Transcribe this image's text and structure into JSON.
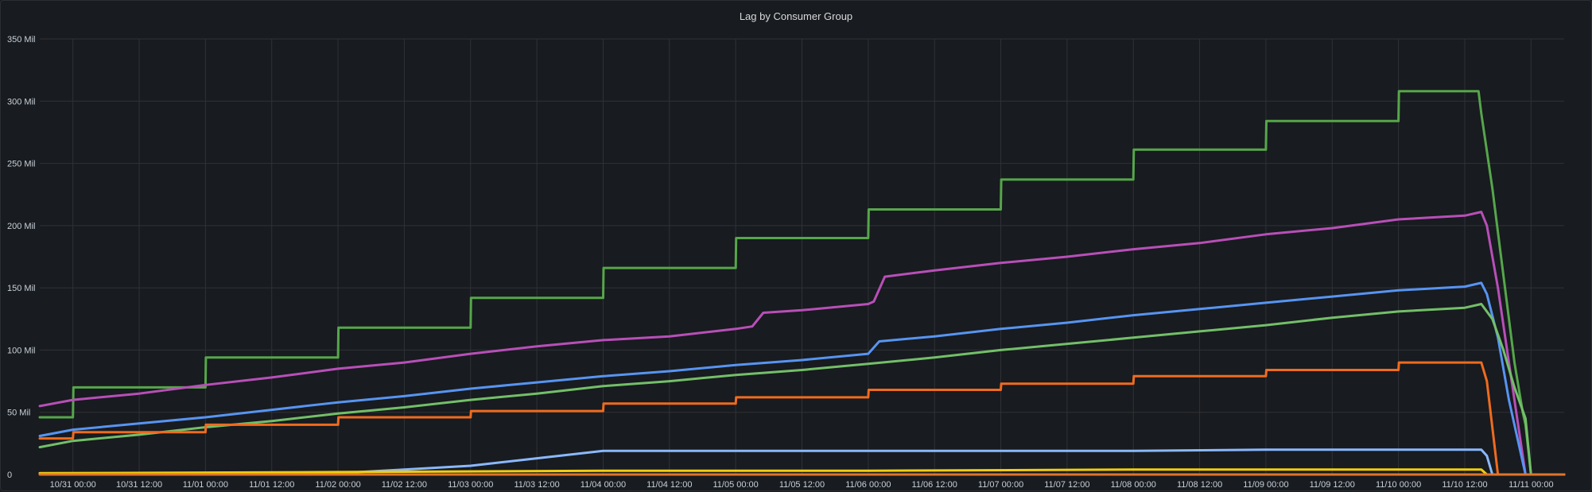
{
  "panel": {
    "title": "Lag by Consumer Group"
  },
  "chart_data": {
    "type": "line",
    "title": "Lag by Consumer Group",
    "xlabel": "",
    "ylabel": "",
    "xlim": [
      "10/30 18:00",
      "11/11 06:00"
    ],
    "ylim": [
      0,
      350
    ],
    "grid": true,
    "legend": "none",
    "y_ticks": [
      {
        "value": 0,
        "label": "0"
      },
      {
        "value": 50,
        "label": "50 Mil"
      },
      {
        "value": 100,
        "label": "100 Mil"
      },
      {
        "value": 150,
        "label": "150 Mil"
      },
      {
        "value": 200,
        "label": "200 Mil"
      },
      {
        "value": 250,
        "label": "250 Mil"
      },
      {
        "value": 300,
        "label": "300 Mil"
      },
      {
        "value": 350,
        "label": "350 Mil"
      }
    ],
    "x_ticks": [
      {
        "time": "10/31 00:00",
        "label": "10/31 00:00"
      },
      {
        "time": "10/31 12:00",
        "label": "10/31 12:00"
      },
      {
        "time": "11/01 00:00",
        "label": "11/01 00:00"
      },
      {
        "time": "11/01 12:00",
        "label": "11/01 12:00"
      },
      {
        "time": "11/02 00:00",
        "label": "11/02 00:00"
      },
      {
        "time": "11/02 12:00",
        "label": "11/02 12:00"
      },
      {
        "time": "11/03 00:00",
        "label": "11/03 00:00"
      },
      {
        "time": "11/03 12:00",
        "label": "11/03 12:00"
      },
      {
        "time": "11/04 00:00",
        "label": "11/04 00:00"
      },
      {
        "time": "11/04 12:00",
        "label": "11/04 12:00"
      },
      {
        "time": "11/05 00:00",
        "label": "11/05 00:00"
      },
      {
        "time": "11/05 12:00",
        "label": "11/05 12:00"
      },
      {
        "time": "11/06 00:00",
        "label": "11/06 00:00"
      },
      {
        "time": "11/06 12:00",
        "label": "11/06 12:00"
      },
      {
        "time": "11/07 00:00",
        "label": "11/07 00:00"
      },
      {
        "time": "11/07 12:00",
        "label": "11/07 12:00"
      },
      {
        "time": "11/08 00:00",
        "label": "11/08 00:00"
      },
      {
        "time": "11/08 12:00",
        "label": "11/08 12:00"
      },
      {
        "time": "11/09 00:00",
        "label": "11/09 00:00"
      },
      {
        "time": "11/09 12:00",
        "label": "11/09 12:00"
      },
      {
        "time": "11/10 00:00",
        "label": "11/10 00:00"
      },
      {
        "time": "11/10 12:00",
        "label": "11/10 12:00"
      },
      {
        "time": "11/11 00:00",
        "label": "11/11 00:00"
      }
    ],
    "series": [
      {
        "color": "#56a64b",
        "points": [
          [
            "10/30 18:00",
            46
          ],
          [
            "10/31 00:00",
            46
          ],
          [
            "10/31 00:05",
            70
          ],
          [
            "11/01 00:00",
            70
          ],
          [
            "11/01 00:05",
            94
          ],
          [
            "11/02 00:00",
            94
          ],
          [
            "11/02 00:05",
            118
          ],
          [
            "11/03 00:00",
            118
          ],
          [
            "11/03 00:05",
            142
          ],
          [
            "11/04 00:00",
            142
          ],
          [
            "11/04 00:05",
            166
          ],
          [
            "11/05 00:00",
            166
          ],
          [
            "11/05 00:05",
            190
          ],
          [
            "11/06 00:00",
            190
          ],
          [
            "11/06 00:05",
            213
          ],
          [
            "11/07 00:00",
            213
          ],
          [
            "11/07 00:05",
            237
          ],
          [
            "11/08 00:00",
            237
          ],
          [
            "11/08 00:05",
            261
          ],
          [
            "11/09 00:00",
            261
          ],
          [
            "11/09 00:05",
            284
          ],
          [
            "11/10 00:00",
            284
          ],
          [
            "11/10 00:05",
            308
          ],
          [
            "11/10 14:30",
            308
          ],
          [
            "11/10 15:00",
            290
          ],
          [
            "11/10 17:00",
            230
          ],
          [
            "11/10 19:00",
            160
          ],
          [
            "11/10 21:00",
            90
          ],
          [
            "11/10 22:30",
            50
          ],
          [
            "11/10 23:00",
            40
          ],
          [
            "11/11 00:00",
            0
          ],
          [
            "11/11 06:00",
            0
          ]
        ]
      },
      {
        "color": "#b84fb8",
        "points": [
          [
            "10/30 18:00",
            55
          ],
          [
            "10/31 00:00",
            60
          ],
          [
            "10/31 12:00",
            65
          ],
          [
            "11/01 00:00",
            72
          ],
          [
            "11/01 12:00",
            78
          ],
          [
            "11/02 00:00",
            85
          ],
          [
            "11/02 12:00",
            90
          ],
          [
            "11/03 00:00",
            97
          ],
          [
            "11/03 12:00",
            103
          ],
          [
            "11/04 00:00",
            108
          ],
          [
            "11/04 12:00",
            111
          ],
          [
            "11/05 00:00",
            117
          ],
          [
            "11/05 03:00",
            119
          ],
          [
            "11/05 05:00",
            130
          ],
          [
            "11/05 12:00",
            132
          ],
          [
            "11/06 00:00",
            137
          ],
          [
            "11/06 01:00",
            139
          ],
          [
            "11/06 03:00",
            159
          ],
          [
            "11/06 12:00",
            164
          ],
          [
            "11/07 00:00",
            170
          ],
          [
            "11/07 12:00",
            175
          ],
          [
            "11/08 00:00",
            181
          ],
          [
            "11/08 12:00",
            186
          ],
          [
            "11/09 00:00",
            193
          ],
          [
            "11/09 12:00",
            198
          ],
          [
            "11/10 00:00",
            205
          ],
          [
            "11/10 12:00",
            208
          ],
          [
            "11/10 15:00",
            211
          ],
          [
            "11/10 16:00",
            200
          ],
          [
            "11/10 18:00",
            150
          ],
          [
            "11/10 20:00",
            90
          ],
          [
            "11/10 22:00",
            30
          ],
          [
            "11/10 23:00",
            0
          ],
          [
            "11/11 06:00",
            0
          ]
        ]
      },
      {
        "color": "#5794f2",
        "points": [
          [
            "10/30 18:00",
            31
          ],
          [
            "10/31 00:00",
            36
          ],
          [
            "10/31 12:00",
            41
          ],
          [
            "11/01 00:00",
            46
          ],
          [
            "11/01 12:00",
            52
          ],
          [
            "11/02 00:00",
            58
          ],
          [
            "11/02 12:00",
            63
          ],
          [
            "11/03 00:00",
            69
          ],
          [
            "11/03 12:00",
            74
          ],
          [
            "11/04 00:00",
            79
          ],
          [
            "11/04 12:00",
            83
          ],
          [
            "11/05 00:00",
            88
          ],
          [
            "11/05 12:00",
            92
          ],
          [
            "11/06 00:00",
            97
          ],
          [
            "11/06 02:00",
            107
          ],
          [
            "11/06 12:00",
            111
          ],
          [
            "11/07 00:00",
            117
          ],
          [
            "11/07 12:00",
            122
          ],
          [
            "11/08 00:00",
            128
          ],
          [
            "11/08 12:00",
            133
          ],
          [
            "11/09 00:00",
            138
          ],
          [
            "11/09 12:00",
            143
          ],
          [
            "11/10 00:00",
            148
          ],
          [
            "11/10 12:00",
            151
          ],
          [
            "11/10 15:00",
            154
          ],
          [
            "11/10 16:00",
            145
          ],
          [
            "11/10 18:00",
            110
          ],
          [
            "11/10 20:00",
            60
          ],
          [
            "11/10 22:00",
            20
          ],
          [
            "11/10 23:00",
            0
          ],
          [
            "11/11 06:00",
            0
          ]
        ]
      },
      {
        "color": "#73bf69",
        "points": [
          [
            "10/30 18:00",
            22
          ],
          [
            "10/31 00:00",
            27
          ],
          [
            "10/31 12:00",
            32
          ],
          [
            "11/01 00:00",
            38
          ],
          [
            "11/01 12:00",
            43
          ],
          [
            "11/02 00:00",
            49
          ],
          [
            "11/02 12:00",
            54
          ],
          [
            "11/03 00:00",
            60
          ],
          [
            "11/03 12:00",
            65
          ],
          [
            "11/04 00:00",
            71
          ],
          [
            "11/04 12:00",
            75
          ],
          [
            "11/05 00:00",
            80
          ],
          [
            "11/05 12:00",
            84
          ],
          [
            "11/06 00:00",
            89
          ],
          [
            "11/06 12:00",
            94
          ],
          [
            "11/07 00:00",
            100
          ],
          [
            "11/07 12:00",
            105
          ],
          [
            "11/08 00:00",
            110
          ],
          [
            "11/08 12:00",
            115
          ],
          [
            "11/09 00:00",
            120
          ],
          [
            "11/09 12:00",
            126
          ],
          [
            "11/10 00:00",
            131
          ],
          [
            "11/10 12:00",
            134
          ],
          [
            "11/10 15:00",
            137
          ],
          [
            "11/10 17:00",
            125
          ],
          [
            "11/10 19:00",
            100
          ],
          [
            "11/10 21:00",
            70
          ],
          [
            "11/10 23:00",
            45
          ],
          [
            "11/11 00:00",
            0
          ],
          [
            "11/11 06:00",
            0
          ]
        ]
      },
      {
        "color": "#ef6b1f",
        "points": [
          [
            "10/30 18:00",
            29
          ],
          [
            "10/31 00:00",
            29
          ],
          [
            "10/31 00:05",
            34
          ],
          [
            "11/01 00:00",
            34
          ],
          [
            "11/01 00:05",
            40
          ],
          [
            "11/02 00:00",
            40
          ],
          [
            "11/02 00:05",
            46
          ],
          [
            "11/03 00:00",
            46
          ],
          [
            "11/03 00:05",
            51
          ],
          [
            "11/04 00:00",
            51
          ],
          [
            "11/04 00:05",
            57
          ],
          [
            "11/05 00:00",
            57
          ],
          [
            "11/05 00:05",
            62
          ],
          [
            "11/06 00:00",
            62
          ],
          [
            "11/06 00:05",
            68
          ],
          [
            "11/07 00:00",
            68
          ],
          [
            "11/07 00:05",
            73
          ],
          [
            "11/08 00:00",
            73
          ],
          [
            "11/08 00:05",
            79
          ],
          [
            "11/09 00:00",
            79
          ],
          [
            "11/09 00:05",
            84
          ],
          [
            "11/10 00:00",
            84
          ],
          [
            "11/10 00:05",
            90
          ],
          [
            "11/10 15:00",
            90
          ],
          [
            "11/10 16:00",
            75
          ],
          [
            "11/10 18:00",
            0
          ],
          [
            "11/11 06:00",
            0
          ]
        ]
      },
      {
        "color": "#8ab8ff",
        "points": [
          [
            "10/30 18:00",
            1
          ],
          [
            "11/02 00:00",
            1
          ],
          [
            "11/02 12:00",
            4
          ],
          [
            "11/03 00:00",
            7
          ],
          [
            "11/03 12:00",
            13
          ],
          [
            "11/04 00:00",
            19
          ],
          [
            "11/05 00:00",
            19
          ],
          [
            "11/06 00:00",
            19
          ],
          [
            "11/07 00:00",
            19
          ],
          [
            "11/08 00:00",
            19
          ],
          [
            "11/09 00:00",
            20
          ],
          [
            "11/10 00:00",
            20
          ],
          [
            "11/10 15:00",
            20
          ],
          [
            "11/10 16:00",
            15
          ],
          [
            "11/10 17:00",
            0
          ],
          [
            "11/11 06:00",
            0
          ]
        ]
      },
      {
        "color": "#f2cc0c",
        "points": [
          [
            "10/30 18:00",
            1
          ],
          [
            "11/02 00:00",
            2
          ],
          [
            "11/04 00:00",
            3
          ],
          [
            "11/06 00:00",
            3
          ],
          [
            "11/08 00:00",
            4
          ],
          [
            "11/10 00:00",
            4
          ],
          [
            "11/10 15:00",
            4
          ],
          [
            "11/10 16:00",
            0
          ],
          [
            "11/11 06:00",
            0
          ]
        ]
      },
      {
        "color": "#e0752d",
        "points": [
          [
            "10/30 18:00",
            0
          ],
          [
            "11/11 06:00",
            0
          ]
        ]
      }
    ]
  }
}
